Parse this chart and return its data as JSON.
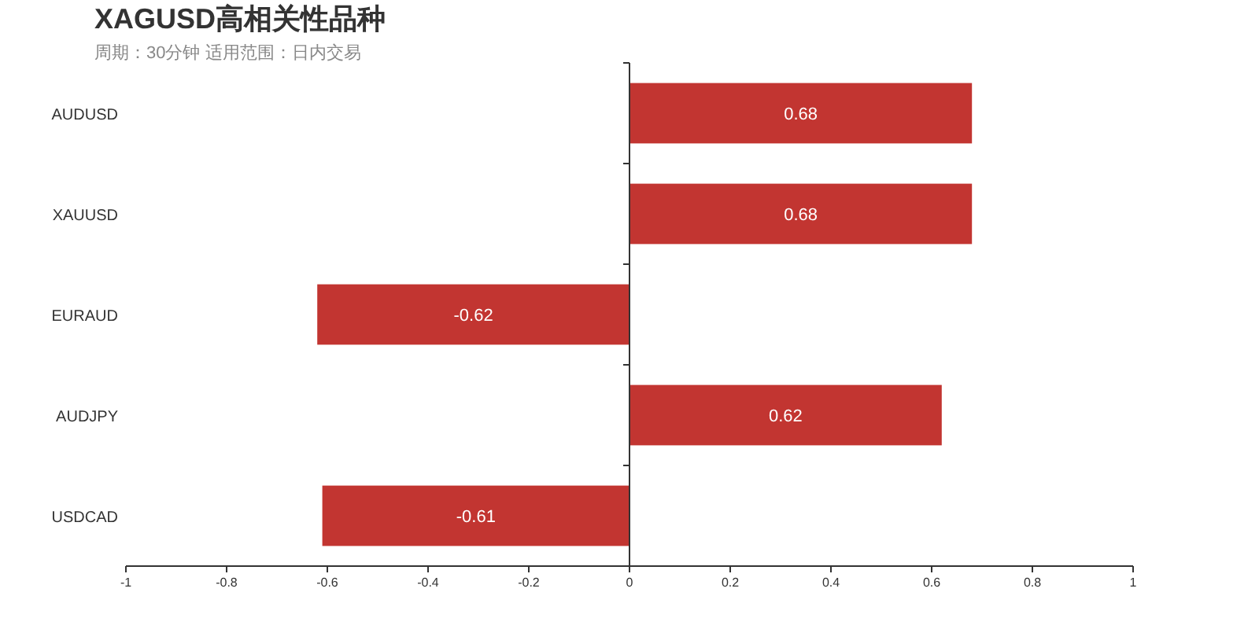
{
  "chart_data": {
    "type": "bar",
    "orientation": "horizontal",
    "title": "XAGUSD高相关性品种",
    "subtitle": "周期：30分钟 适用范围：日内交易",
    "categories": [
      "AUDUSD",
      "XAUUSD",
      "EURAUD",
      "AUDJPY",
      "USDCAD"
    ],
    "values": [
      0.68,
      0.68,
      -0.62,
      0.62,
      -0.61
    ],
    "color": "#c23531",
    "data_labels": true,
    "xlim": [
      -1,
      1
    ],
    "xticks": [
      -1,
      -0.8,
      -0.6,
      -0.4,
      -0.2,
      0,
      0.2,
      0.4,
      0.6,
      0.8,
      1
    ]
  }
}
